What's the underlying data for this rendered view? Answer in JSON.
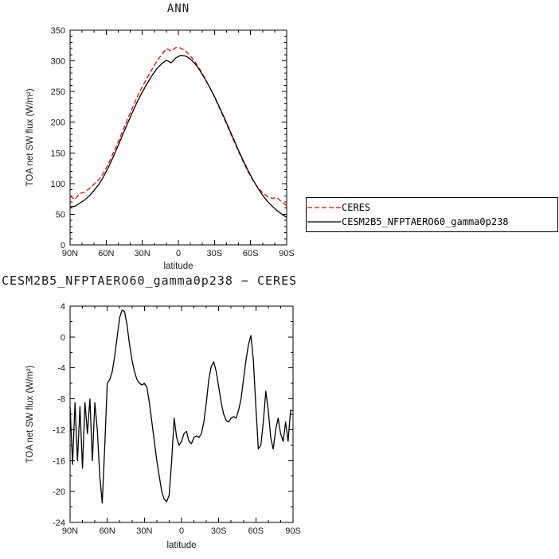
{
  "page": {
    "background": "#ffffff"
  },
  "chart_data": [
    {
      "type": "line",
      "title": "ANN",
      "xlabel": "latitude",
      "ylabel": "TOA net SW flux (W/m²)",
      "xlim": [
        90,
        -90
      ],
      "ylim": [
        0,
        350
      ],
      "grid": false,
      "legend_position": "right-outside",
      "xticks": {
        "values": [
          90,
          60,
          30,
          0,
          -30,
          -60,
          -90
        ],
        "labels": [
          "90N",
          "60N",
          "30N",
          "0",
          "30S",
          "60S",
          "90S"
        ],
        "minor_step": 10
      },
      "yticks": {
        "values": [
          0,
          50,
          100,
          150,
          200,
          250,
          300,
          350
        ],
        "labels": [
          "0",
          "50",
          "100",
          "150",
          "200",
          "250",
          "300",
          "350"
        ],
        "minor_step": 10
      },
      "x": [
        90,
        86,
        82,
        78,
        74,
        70,
        66,
        62,
        58,
        54,
        50,
        46,
        42,
        38,
        34,
        30,
        26,
        22,
        18,
        14,
        10,
        6,
        2,
        -2,
        -6,
        -10,
        -14,
        -18,
        -22,
        -26,
        -30,
        -34,
        -38,
        -42,
        -46,
        -50,
        -54,
        -58,
        -62,
        -66,
        -70,
        -74,
        -78,
        -82,
        -86,
        -90
      ],
      "series": [
        {
          "name": "CERES",
          "color": "#ee0000",
          "style": "dashed",
          "dash": "6,3",
          "values": [
            80,
            74,
            84,
            86,
            92,
            99,
            107,
            118,
            133,
            150,
            168,
            187,
            206,
            224,
            242,
            258,
            272,
            286,
            299,
            310,
            320,
            316,
            322,
            321,
            316,
            308,
            298,
            286,
            272,
            257,
            241,
            224,
            206,
            188,
            170,
            152,
            135,
            119,
            105,
            94,
            85,
            79,
            76,
            77,
            70,
            64
          ]
        },
        {
          "name": "CESM2B5_NFPTAERO60_gamma0p238",
          "color": "#000000",
          "style": "solid",
          "dash": "",
          "values": [
            62,
            63,
            68,
            73,
            80,
            89,
            99,
            112,
            127,
            144,
            162,
            181,
            199,
            217,
            234,
            249,
            263,
            276,
            287,
            295,
            301,
            297,
            305,
            309,
            308,
            303,
            295,
            284,
            271,
            257,
            242,
            225,
            208,
            190,
            172,
            154,
            137,
            121,
            106,
            93,
            81,
            71,
            63,
            56,
            50,
            45
          ]
        }
      ]
    },
    {
      "type": "line",
      "title": "CESM2B5_NFPTAERO60_gamma0p238 − CERES",
      "xlabel": "latitude",
      "ylabel": "TOA net SW flux (W/m²)",
      "xlim": [
        90,
        -90
      ],
      "ylim": [
        -24,
        4
      ],
      "grid": false,
      "xticks": {
        "values": [
          90,
          60,
          30,
          0,
          -30,
          -60,
          -90
        ],
        "labels": [
          "90N",
          "60N",
          "30N",
          "0",
          "30S",
          "60S",
          "90S"
        ],
        "minor_step": 10
      },
      "yticks": {
        "values": [
          4,
          0,
          -4,
          -8,
          -12,
          -16,
          -20,
          -24
        ],
        "labels": [
          "4",
          "0",
          "-4",
          "-8",
          "-12",
          "-16",
          "-20",
          "-24"
        ],
        "minor_step": 2
      },
      "x": [
        90,
        88,
        86,
        84,
        82,
        80,
        78,
        76,
        74,
        72,
        70,
        68,
        66,
        64,
        62,
        60,
        58,
        56,
        54,
        52,
        50,
        48,
        46,
        44,
        42,
        40,
        38,
        36,
        34,
        32,
        30,
        28,
        26,
        24,
        22,
        20,
        18,
        16,
        14,
        12,
        10,
        8,
        6,
        4,
        2,
        0,
        -2,
        -4,
        -6,
        -8,
        -10,
        -12,
        -14,
        -16,
        -18,
        -20,
        -22,
        -24,
        -26,
        -28,
        -30,
        -32,
        -34,
        -36,
        -38,
        -40,
        -42,
        -44,
        -46,
        -48,
        -50,
        -52,
        -54,
        -56,
        -58,
        -60,
        -62,
        -64,
        -66,
        -68,
        -70,
        -72,
        -74,
        -76,
        -78,
        -80,
        -82,
        -84,
        -86,
        -88,
        -90
      ],
      "series": [
        {
          "color": "#000000",
          "style": "solid",
          "dash": "",
          "values": [
            -9,
            -16.5,
            -8.5,
            -16,
            -9,
            -17,
            -8.5,
            -12.5,
            -8,
            -16,
            -8.5,
            -12,
            -18,
            -21.5,
            -14,
            -6,
            -5.5,
            -4.5,
            -2.5,
            0,
            2.5,
            3.5,
            3.3,
            1.5,
            -1,
            -3,
            -4.5,
            -5.5,
            -6,
            -6.2,
            -6,
            -6.5,
            -8.5,
            -11,
            -13.5,
            -16,
            -18,
            -20,
            -21,
            -21.3,
            -20.5,
            -16,
            -10.5,
            -13,
            -14,
            -13.5,
            -12.5,
            -12.2,
            -13.5,
            -13.8,
            -13,
            -12.8,
            -13,
            -12.5,
            -11,
            -8.5,
            -5.5,
            -3.8,
            -3.2,
            -4.5,
            -6.5,
            -8.5,
            -10,
            -10.8,
            -11,
            -10.5,
            -10.3,
            -10.5,
            -9.5,
            -8,
            -5.5,
            -3,
            -1,
            0.2,
            -3,
            -9,
            -14.5,
            -14,
            -11,
            -7,
            -9.5,
            -13,
            -14.5,
            -12,
            -10.5,
            -12.5,
            -13.5,
            -11,
            -13.5,
            -9.5,
            -9.5
          ]
        }
      ]
    }
  ]
}
